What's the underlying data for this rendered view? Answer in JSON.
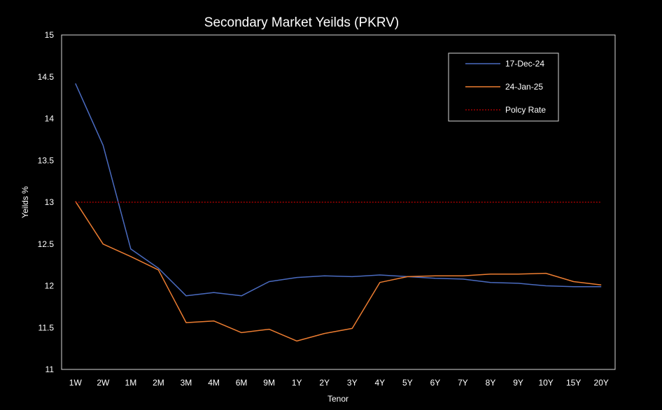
{
  "chart_data": {
    "type": "line",
    "title": "Secondary Market Yeilds (PKRV)",
    "xlabel": "Tenor",
    "ylabel": "Yeilds %",
    "ylim": [
      11,
      15
    ],
    "yticks": [
      "15",
      "14.5",
      "14",
      "13.5",
      "13",
      "12.5",
      "12",
      "11.5",
      "11"
    ],
    "categories": [
      "1W",
      "2W",
      "1M",
      "2M",
      "3M",
      "4M",
      "6M",
      "9M",
      "1Y",
      "2Y",
      "3Y",
      "4Y",
      "5Y",
      "6Y",
      "7Y",
      "8Y",
      "9Y",
      "10Y",
      "15Y",
      "20Y"
    ],
    "series": [
      {
        "name": "17-Dec-24",
        "color": "#4a6bc0",
        "style": "solid",
        "values": [
          14.42,
          13.68,
          12.44,
          12.21,
          11.88,
          11.92,
          11.88,
          12.05,
          12.1,
          12.12,
          12.11,
          12.13,
          12.11,
          12.09,
          12.08,
          12.04,
          12.03,
          12.0,
          11.99,
          11.99
        ]
      },
      {
        "name": "24-Jan-25",
        "color": "#ed7d31",
        "style": "solid",
        "values": [
          13.01,
          12.5,
          12.35,
          12.19,
          11.56,
          11.58,
          11.44,
          11.48,
          11.34,
          11.43,
          11.49,
          12.04,
          12.11,
          12.12,
          12.12,
          12.14,
          12.14,
          12.15,
          12.05,
          12.01
        ]
      },
      {
        "name": "Polcy Rate",
        "color": "#c00000",
        "style": "dotted",
        "values": [
          13,
          13,
          13,
          13,
          13,
          13,
          13,
          13,
          13,
          13,
          13,
          13,
          13,
          13,
          13,
          13,
          13,
          13,
          13,
          13
        ]
      }
    ],
    "legend_position": "top-right",
    "grid": false
  }
}
